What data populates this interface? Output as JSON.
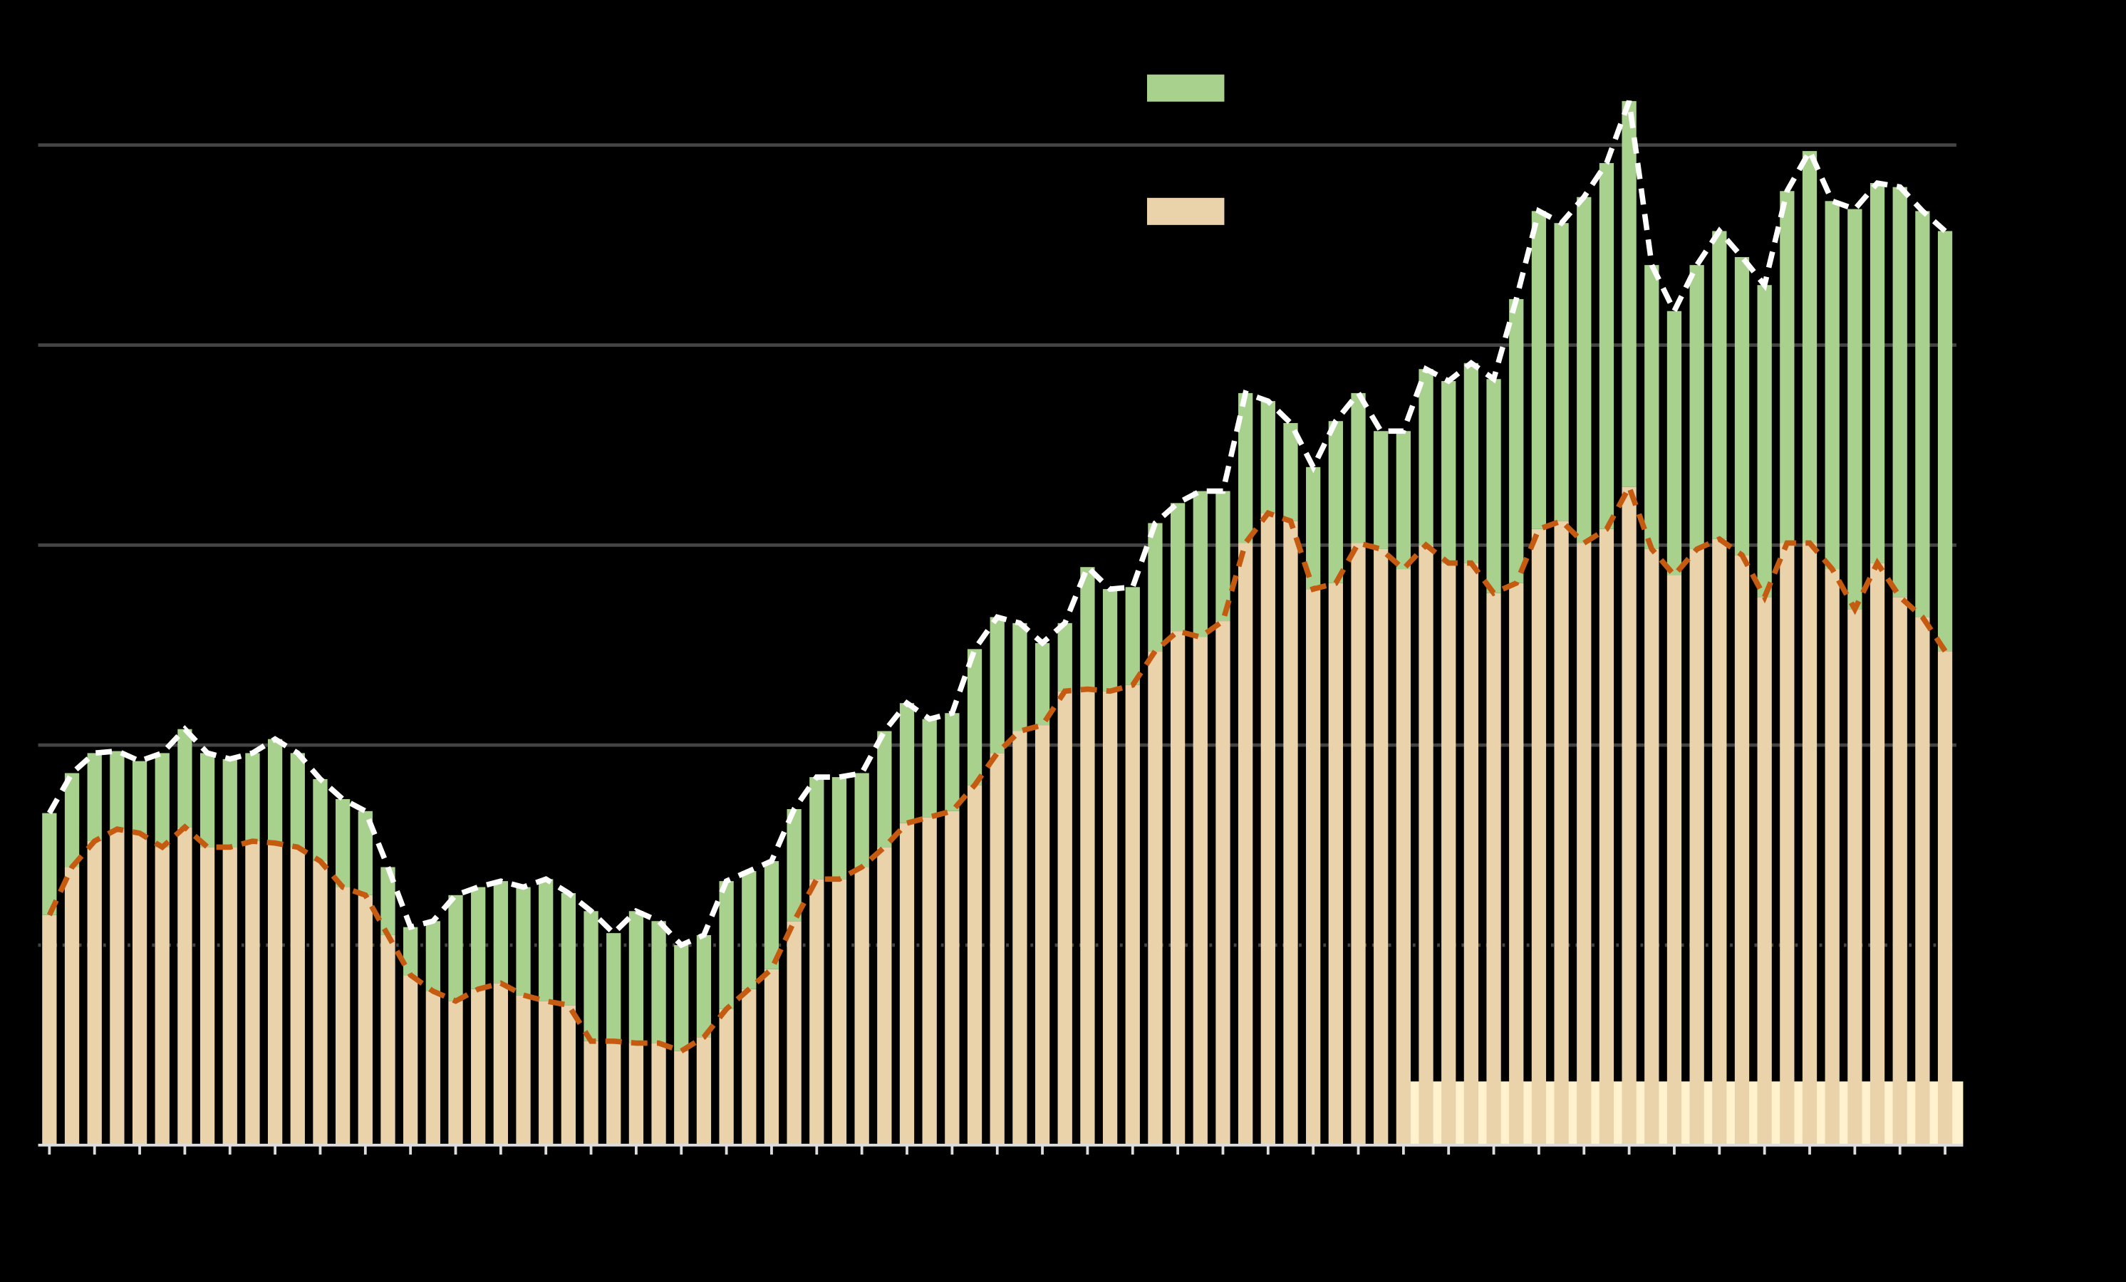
{
  "chart_data": {
    "type": "stacked-bar",
    "categories": [
      null,
      null,
      null,
      null,
      null,
      null,
      null,
      null,
      null,
      null,
      null,
      null,
      null,
      null,
      null,
      null,
      null,
      null,
      null,
      null,
      null,
      null,
      null,
      null,
      null,
      null,
      null,
      null,
      null,
      null,
      null,
      null,
      null,
      null,
      null,
      null,
      null,
      null,
      null,
      null,
      null,
      null,
      null,
      null,
      null,
      null,
      null,
      null,
      null,
      null,
      null,
      null,
      null,
      null,
      null,
      null,
      null,
      null,
      null,
      null,
      null,
      null,
      null,
      null,
      null,
      null,
      null,
      null,
      null,
      null,
      null,
      null,
      null,
      null,
      null,
      null,
      null,
      null,
      null,
      null,
      null,
      null,
      null,
      null,
      null
    ],
    "series": [
      {
        "color": "#ead3ab",
        "values": [
          1.15,
          1.39,
          1.52,
          1.58,
          1.56,
          1.49,
          1.59,
          1.49,
          1.49,
          1.52,
          1.51,
          1.49,
          1.42,
          1.29,
          1.25,
          1.05,
          0.85,
          0.77,
          0.72,
          0.78,
          0.81,
          0.75,
          0.72,
          0.7,
          0.52,
          0.52,
          0.51,
          0.51,
          0.47,
          0.54,
          0.68,
          0.78,
          0.88,
          1.12,
          1.33,
          1.33,
          1.39,
          1.49,
          1.61,
          1.64,
          1.67,
          1.8,
          1.96,
          2.07,
          2.1,
          2.27,
          2.28,
          2.27,
          2.3,
          2.47,
          2.57,
          2.54,
          2.62,
          3.01,
          3.16,
          3.12,
          2.78,
          2.81,
          3.01,
          2.98,
          2.88,
          3.0,
          2.91,
          2.91,
          2.76,
          2.81,
          3.08,
          3.12,
          3.01,
          3.08,
          3.29,
          2.98,
          2.85,
          2.98,
          3.03,
          2.95,
          2.74,
          3.01,
          3.01,
          2.88,
          2.68,
          2.91,
          2.74,
          2.64,
          2.47
        ]
      },
      {
        "color": "#a9d18e",
        "values": [
          0.51,
          0.47,
          0.44,
          0.39,
          0.36,
          0.47,
          0.49,
          0.47,
          0.44,
          0.44,
          0.52,
          0.47,
          0.41,
          0.44,
          0.42,
          0.34,
          0.24,
          0.35,
          0.53,
          0.51,
          0.51,
          0.54,
          0.61,
          0.56,
          0.65,
          0.54,
          0.66,
          0.61,
          0.53,
          0.51,
          0.64,
          0.59,
          0.54,
          0.56,
          0.51,
          0.51,
          0.47,
          0.58,
          0.6,
          0.49,
          0.49,
          0.68,
          0.68,
          0.54,
          0.41,
          0.34,
          0.61,
          0.51,
          0.49,
          0.64,
          0.64,
          0.73,
          0.65,
          0.75,
          0.56,
          0.49,
          0.61,
          0.81,
          0.75,
          0.59,
          0.69,
          0.88,
          0.91,
          1.0,
          1.07,
          1.42,
          1.59,
          1.49,
          1.73,
          1.83,
          1.93,
          1.42,
          1.32,
          1.42,
          1.54,
          1.49,
          1.56,
          1.76,
          1.96,
          1.84,
          2.0,
          1.9,
          2.05,
          2.03,
          2.1
        ]
      }
    ],
    "ylim": [
      0,
      5.4
    ],
    "yticks": [
      0,
      1,
      2,
      3,
      4,
      5
    ],
    "grid": true
  }
}
